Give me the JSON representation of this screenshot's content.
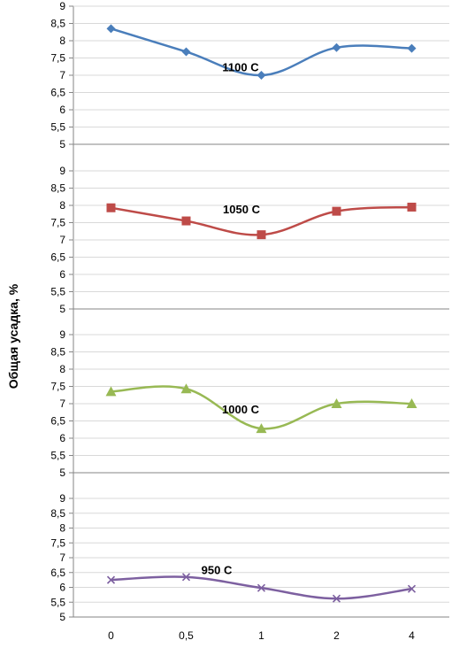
{
  "chart_data": {
    "type": "line",
    "ylabel": "Общая усадка, %",
    "categories": [
      "0",
      "0,5",
      "1",
      "2",
      "4"
    ],
    "ylim": [
      5,
      9
    ],
    "yticks": [
      "5",
      "5,5",
      "6",
      "6,5",
      "7",
      "7,5",
      "8",
      "8,5",
      "9"
    ],
    "grid": true,
    "panels": [
      {
        "name": "1100 C",
        "color": "#4a7ebb",
        "marker": "diamond",
        "values": [
          8.35,
          7.68,
          7.0,
          7.8,
          7.78
        ]
      },
      {
        "name": "1050 C",
        "color": "#be4b48",
        "marker": "square",
        "values": [
          7.93,
          7.55,
          7.15,
          7.83,
          7.95
        ]
      },
      {
        "name": "1000 C",
        "color": "#98b954",
        "marker": "triangle",
        "values": [
          7.35,
          7.43,
          6.28,
          7.0,
          7.0
        ]
      },
      {
        "name": "950 C",
        "color": "#7d60a0",
        "marker": "x",
        "values": [
          6.25,
          6.35,
          5.98,
          5.62,
          5.95
        ]
      }
    ]
  }
}
